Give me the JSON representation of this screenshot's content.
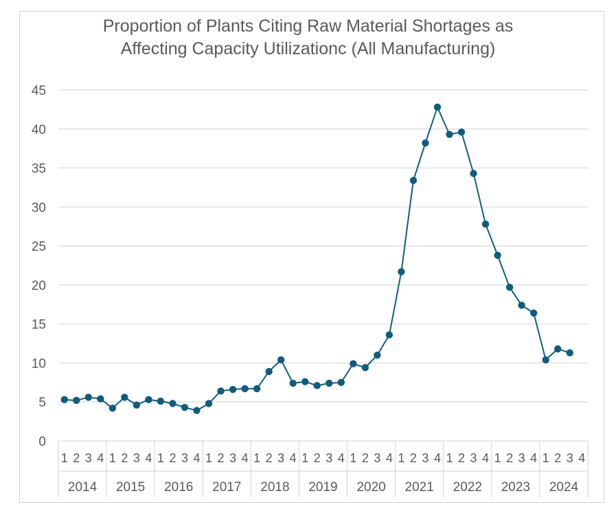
{
  "chart_data": {
    "type": "line",
    "title_line1": "Proportion of Plants Citing Raw Material Shortages as",
    "title_line2": "Affecting Capacity Utilizationc (All Manufacturing)",
    "xlabel": "",
    "ylabel": "",
    "ylim": [
      0,
      45
    ],
    "yticks": [
      0,
      5,
      10,
      15,
      20,
      25,
      30,
      35,
      40,
      45
    ],
    "grid": true,
    "legend": "none",
    "color": "#0f5d7e",
    "years": [
      "2014",
      "2015",
      "2016",
      "2017",
      "2018",
      "2019",
      "2020",
      "2021",
      "2022",
      "2023",
      "2024"
    ],
    "quarters": [
      "1",
      "2",
      "3",
      "4"
    ],
    "series": [
      {
        "name": "Proportion of Plants",
        "values": [
          5.3,
          5.2,
          5.6,
          5.4,
          4.2,
          5.6,
          4.6,
          5.3,
          5.1,
          4.8,
          4.3,
          3.9,
          4.8,
          6.4,
          6.6,
          6.7,
          6.7,
          8.9,
          10.4,
          7.4,
          7.6,
          7.1,
          7.4,
          7.5,
          9.9,
          9.4,
          11.0,
          13.6,
          21.7,
          33.4,
          38.2,
          42.8,
          39.3,
          39.6,
          34.3,
          27.8,
          23.8,
          19.7,
          17.4,
          16.4,
          10.4,
          11.8,
          11.3,
          null
        ]
      }
    ]
  }
}
